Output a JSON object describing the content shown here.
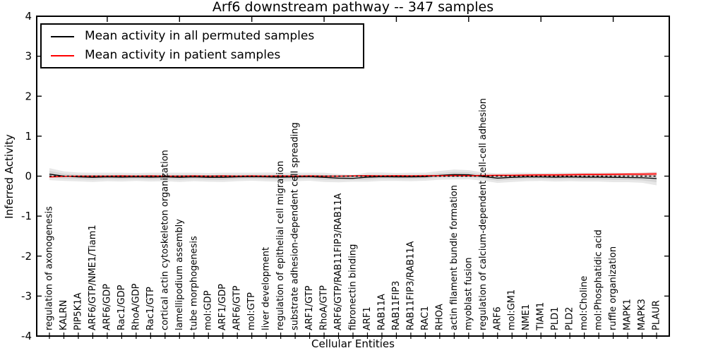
{
  "title": "Arf6 downstream pathway -- 347 samples",
  "legend": {
    "entries": [
      {
        "label": "Mean activity in all permuted samples",
        "color": "#000000"
      },
      {
        "label": "Mean activity in patient samples",
        "color": "#ff0000"
      }
    ]
  },
  "chart_data": {
    "type": "line",
    "title": "Arf6 downstream pathway -- 347 samples",
    "xlabel": "Cellular Entities",
    "ylabel": "Inferred Activity",
    "ylim": [
      -4,
      4
    ],
    "yticks": [
      4,
      3,
      2,
      1,
      0,
      -1,
      -2,
      -3,
      -4
    ],
    "grid": false,
    "legend_position": "upper left",
    "zero_line": {
      "value": 0,
      "style": "dashed",
      "color": "#000000"
    },
    "colors": {
      "permuted_line": "#000000",
      "patient_line": "#ff0000",
      "band_outer": "#e7e7e7",
      "band_inner": "#d5d5d5",
      "patient_band": "rgba(255,70,70,0.30)"
    },
    "categories": [
      "regulation of axonogenesis",
      "KALRN",
      "PIP5K1A",
      "ARF6/GTP/NME1/Tiam1",
      "ARF6/GDP",
      "Rac1/GDP",
      "RhoA/GDP",
      "Rac1/GTP",
      "cortical actin cytoskeleton organization",
      "lamellipodium assembly",
      "tube morphogenesis",
      "mol:GDP",
      "ARF1/GDP",
      "ARF6/GTP",
      "mol:GTP",
      "liver development",
      "regulation of epithelial cell migration",
      "substrate adhesion-dependent cell spreading",
      "ARF1/GTP",
      "RhoA/GTP",
      "ARF6/GTP/RAB11FIP3/RAB11A",
      "fibronectin binding",
      "ARF1",
      "RAB11A",
      "RAB11FIP3",
      "RAB11FIP3/RAB11A",
      "RAC1",
      "RHOA",
      "actin filament bundle formation",
      "myoblast fusion",
      "regulation of calcium-dependent cell-cell adhesion",
      "ARF6",
      "mol:GM1",
      "NME1",
      "TIAM1",
      "PLD1",
      "PLD2",
      "mol:Choline",
      "mol:Phosphatidic acid",
      "ruffle organization",
      "MAPK1",
      "MAPK3",
      "PLAUR"
    ],
    "series": [
      {
        "name": "Mean activity in all permuted samples",
        "color": "#000000",
        "values": [
          0.05,
          0.0,
          -0.02,
          -0.03,
          -0.02,
          -0.025,
          -0.02,
          -0.025,
          -0.02,
          -0.03,
          -0.02,
          -0.03,
          -0.03,
          -0.02,
          -0.015,
          -0.02,
          -0.025,
          -0.02,
          -0.015,
          -0.03,
          -0.05,
          -0.055,
          -0.025,
          -0.015,
          -0.02,
          -0.02,
          -0.015,
          0.02,
          0.04,
          0.035,
          -0.01,
          -0.05,
          -0.03,
          -0.02,
          -0.02,
          -0.025,
          -0.02,
          -0.025,
          -0.025,
          -0.03,
          -0.035,
          -0.04,
          -0.06
        ]
      },
      {
        "name": "Mean activity in patient samples",
        "color": "#ff0000",
        "values": [
          -0.02,
          -0.005,
          0.0,
          0.0,
          0.0,
          0.005,
          0.0,
          0.005,
          0.0,
          0.0,
          0.005,
          0.0,
          0.005,
          0.0,
          0.005,
          0.0,
          0.005,
          0.0,
          0.005,
          0.0,
          0.0,
          0.005,
          0.01,
          0.005,
          0.01,
          0.005,
          0.01,
          0.01,
          0.015,
          0.01,
          0.015,
          0.02,
          0.02,
          0.025,
          0.03,
          0.03,
          0.035,
          0.04,
          0.04,
          0.045,
          0.05,
          0.05,
          0.055
        ]
      }
    ],
    "bands": [
      {
        "name": "permuted-spread-outer",
        "center_series": 0,
        "color": "#e7e7e7",
        "halfwidths": [
          0.15,
          0.12,
          0.11,
          0.115,
          0.105,
          0.11,
          0.1,
          0.11,
          0.105,
          0.115,
          0.105,
          0.11,
          0.115,
          0.105,
          0.1,
          0.11,
          0.115,
          0.105,
          0.1,
          0.115,
          0.105,
          0.085,
          0.115,
          0.105,
          0.1,
          0.105,
          0.1,
          0.11,
          0.125,
          0.115,
          0.105,
          0.12,
          0.115,
          0.105,
          0.1,
          0.11,
          0.105,
          0.11,
          0.11,
          0.12,
          0.115,
          0.125,
          0.17
        ]
      },
      {
        "name": "permuted-spread-inner",
        "center_series": 0,
        "color": "#d5d5d5",
        "halfwidths": [
          0.08,
          0.065,
          0.055,
          0.06,
          0.05,
          0.055,
          0.05,
          0.055,
          0.05,
          0.06,
          0.05,
          0.055,
          0.06,
          0.05,
          0.05,
          0.055,
          0.06,
          0.05,
          0.05,
          0.06,
          0.05,
          0.04,
          0.06,
          0.05,
          0.05,
          0.05,
          0.05,
          0.055,
          0.065,
          0.06,
          0.05,
          0.06,
          0.055,
          0.05,
          0.05,
          0.055,
          0.05,
          0.055,
          0.055,
          0.06,
          0.055,
          0.065,
          0.09
        ]
      },
      {
        "name": "patient-spread",
        "center_series": 1,
        "color": "rgba(255,70,70,0.30)",
        "halfwidths": [
          0.02,
          0.015,
          0.015,
          0.015,
          0.015,
          0.015,
          0.015,
          0.015,
          0.015,
          0.015,
          0.015,
          0.015,
          0.015,
          0.015,
          0.015,
          0.015,
          0.015,
          0.015,
          0.015,
          0.015,
          0.015,
          0.015,
          0.015,
          0.015,
          0.015,
          0.02,
          0.02,
          0.02,
          0.02,
          0.02,
          0.02,
          0.025,
          0.025,
          0.025,
          0.025,
          0.03,
          0.03,
          0.03,
          0.03,
          0.03,
          0.03,
          0.035,
          0.04
        ]
      }
    ],
    "top_major_tick_category_indices": [
      4,
      9,
      14,
      19,
      24,
      29,
      34,
      39
    ]
  }
}
